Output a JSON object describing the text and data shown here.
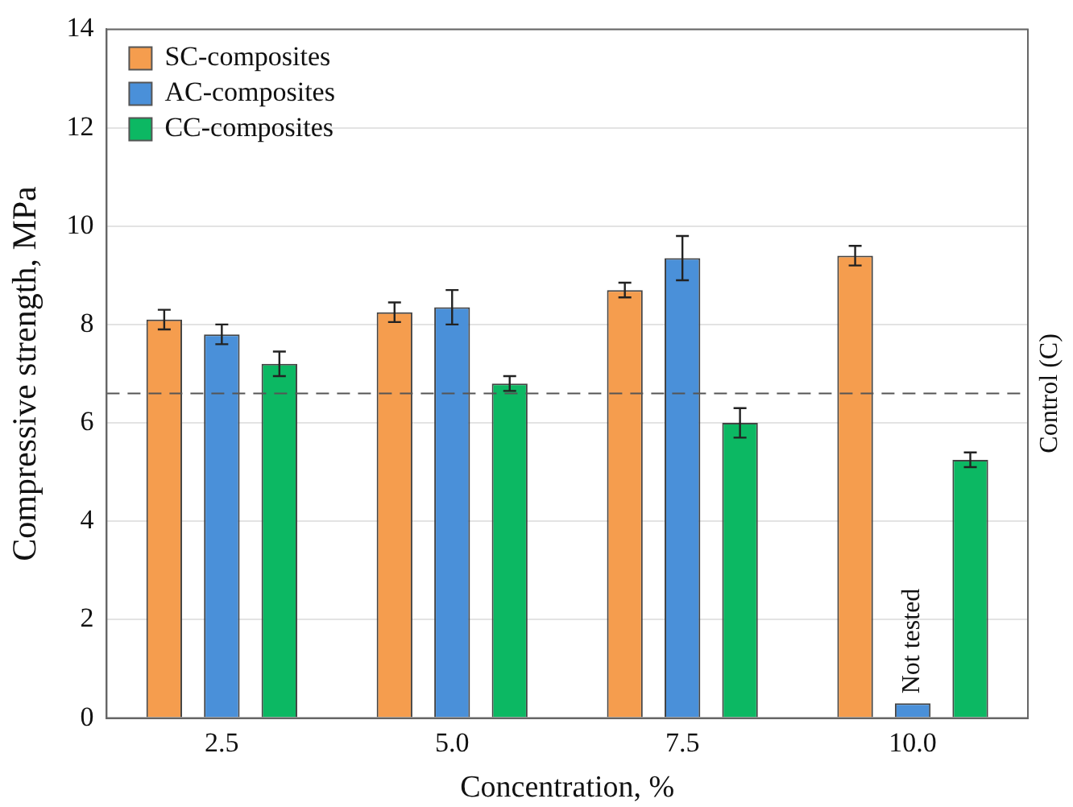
{
  "chart_data": {
    "type": "bar",
    "xlabel": "Concentration, %",
    "ylabel": "Compressive strength, MPa",
    "categories": [
      "2.5",
      "5.0",
      "7.5",
      "10.0"
    ],
    "series": [
      {
        "name": "SC-composites",
        "color": "#f59d4e",
        "values": [
          8.1,
          8.25,
          8.7,
          9.4
        ],
        "errors": [
          0.2,
          0.2,
          0.15,
          0.2
        ]
      },
      {
        "name": "AC-composites",
        "color": "#4a90d9",
        "values": [
          7.8,
          8.35,
          9.35,
          0.3
        ],
        "errors": [
          0.2,
          0.35,
          0.45,
          null
        ]
      },
      {
        "name": "CC-composites",
        "color": "#0cb863",
        "values": [
          7.2,
          6.8,
          6.0,
          5.25
        ],
        "errors": [
          0.25,
          0.15,
          0.3,
          0.15
        ]
      }
    ],
    "ylim": [
      0,
      14
    ],
    "yticks": [
      0,
      2,
      4,
      6,
      8,
      10,
      12,
      14
    ],
    "grid": "y",
    "legend": "top left",
    "ref_lines": [
      {
        "axis": "y",
        "value": 6.6,
        "label": "Control (C)",
        "color": "#555555",
        "line_style": "dashed"
      }
    ],
    "annotations": [
      {
        "text": "Not tested",
        "x": "10.0",
        "y": 0.3
      }
    ]
  }
}
